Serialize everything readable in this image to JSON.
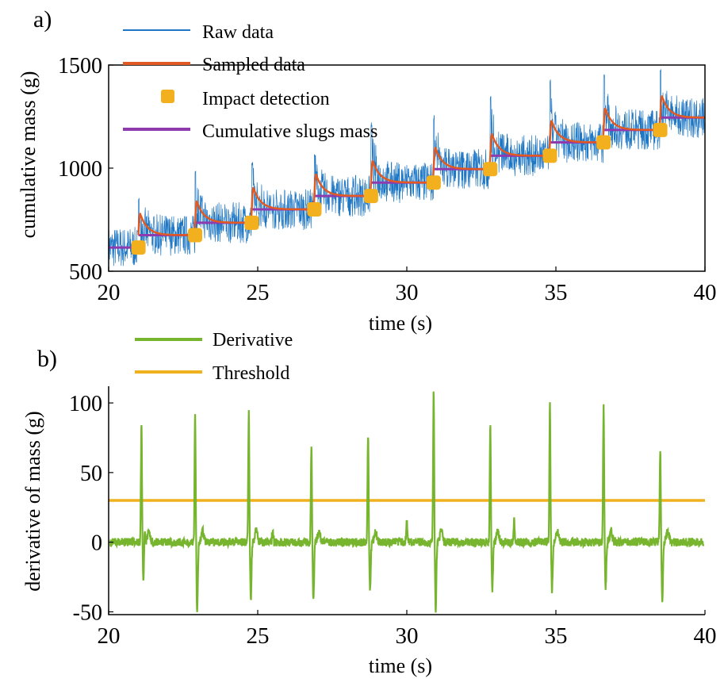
{
  "colors": {
    "raw": "#1f77c4",
    "sampled": "#e05a22",
    "impact": "#f2b01e",
    "slugs": "#8e3bb0",
    "derivative": "#77b52f",
    "threshold": "#efb11d"
  },
  "chart_data": [
    {
      "id": "a",
      "panel_label": "a)",
      "type": "line",
      "xlabel": "time (s)",
      "ylabel": "cumulative mass (g)",
      "xlim": [
        20,
        40
      ],
      "ylim": [
        500,
        1500
      ],
      "xticks": [
        "20",
        "25",
        "30",
        "35",
        "40"
      ],
      "yticks": [
        "500",
        "1000",
        "1500"
      ],
      "legend": {
        "position": "top-left",
        "entries": [
          "Raw data",
          "Sampled data",
          "Impact detection",
          "Cumulative slugs mass"
        ]
      },
      "impacts": [
        {
          "t": 21.0,
          "mass": 615
        },
        {
          "t": 22.9,
          "mass": 675
        },
        {
          "t": 24.8,
          "mass": 735
        },
        {
          "t": 26.9,
          "mass": 800
        },
        {
          "t": 28.8,
          "mass": 865
        },
        {
          "t": 30.9,
          "mass": 930
        },
        {
          "t": 32.8,
          "mass": 995
        },
        {
          "t": 34.8,
          "mass": 1060
        },
        {
          "t": 36.6,
          "mass": 1125
        },
        {
          "t": 38.5,
          "mass": 1185
        }
      ],
      "final_slugs_mass": 1245,
      "raw_peaks": [
        855,
        1000,
        1040,
        1080,
        1230,
        1260,
        1360,
        1430,
        1460,
        1500
      ],
      "raw_noise_halfwidth": 100,
      "series": [
        {
          "name": "Raw data",
          "kind": "noisy-steps"
        },
        {
          "name": "Sampled data",
          "kind": "smoothed-steps"
        },
        {
          "name": "Impact detection",
          "kind": "markers"
        },
        {
          "name": "Cumulative slugs mass",
          "kind": "steps"
        }
      ]
    },
    {
      "id": "b",
      "panel_label": "b)",
      "type": "line",
      "xlabel": "time (s)",
      "ylabel": "derivative of mass (g)",
      "xlim": [
        20,
        40
      ],
      "ylim": [
        -52,
        112
      ],
      "xticks": [
        "20",
        "25",
        "30",
        "35",
        "40"
      ],
      "yticks": [
        "-50",
        "0",
        "50",
        "100"
      ],
      "legend": {
        "position": "top-left",
        "entries": [
          "Derivative",
          "Threshold"
        ]
      },
      "threshold": 30,
      "spikes": [
        {
          "t": 21.1,
          "peak": 84,
          "trough": -31
        },
        {
          "t": 22.9,
          "peak": 94,
          "trough": -52
        },
        {
          "t": 24.7,
          "peak": 94,
          "trough": -41
        },
        {
          "t": 26.8,
          "peak": 69,
          "trough": -42
        },
        {
          "t": 28.7,
          "peak": 78,
          "trough": -34
        },
        {
          "t": 30.9,
          "peak": 109,
          "trough": -52
        },
        {
          "t": 32.8,
          "peak": 86,
          "trough": -34
        },
        {
          "t": 34.8,
          "peak": 102,
          "trough": -37
        },
        {
          "t": 36.6,
          "peak": 97,
          "trough": -32
        },
        {
          "t": 38.5,
          "peak": 67,
          "trough": -45
        }
      ],
      "small_bumps": [
        {
          "t": 21.2,
          "value": 14
        },
        {
          "t": 25.5,
          "value": 8
        },
        {
          "t": 30.0,
          "value": 14
        },
        {
          "t": 33.6,
          "value": 15
        }
      ],
      "series": [
        {
          "name": "Derivative",
          "kind": "line"
        },
        {
          "name": "Threshold",
          "kind": "hline"
        }
      ]
    }
  ]
}
